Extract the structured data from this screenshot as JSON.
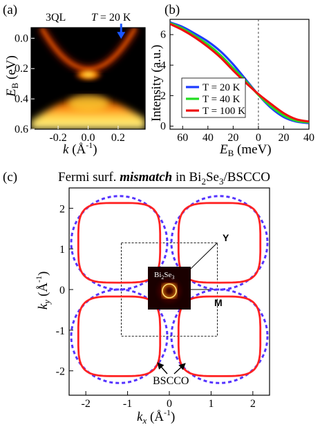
{
  "panels": {
    "a": {
      "letter": "(a)",
      "sample": "3QL",
      "temp_sym": "T",
      "temp_val": " = 20 K"
    },
    "b": {
      "letter": "(b)"
    },
    "c": {
      "letter": "(c)"
    }
  },
  "colors": {
    "blue": "#1f3cff",
    "green": "#22dd22",
    "red": "#ee1111",
    "bscco": "#5533ff",
    "bi2se3": "#ff2222",
    "arrow": "#1a56ff"
  },
  "chart_data": [
    {
      "id": "a",
      "type": "heatmap",
      "xlabel": {
        "k": "k",
        "open": " (Å",
        "exp": "-1",
        "close": ")"
      },
      "ylabel": {
        "E": "E",
        "sub": "B",
        "unit": " (eV)"
      },
      "xlim": [
        -0.38,
        0.38
      ],
      "ylim": [
        0.6,
        -0.07
      ],
      "xticks": [
        -0.2,
        0.0,
        0.2
      ],
      "xtick_labels": [
        "-0.2",
        "0.0",
        "0.2"
      ],
      "yticks": [
        0.0,
        0.2,
        0.4,
        0.6
      ],
      "ytick_labels": [
        "0.0",
        "0.2",
        "0.4",
        "0.6"
      ],
      "annotation": "arrow at k ≈ 0.22, E ≈ 0.0",
      "features": [
        {
          "name": "upper Dirac cone",
          "vertex_E": 0.23
        },
        {
          "name": "lower band",
          "top_E": 0.38
        }
      ]
    },
    {
      "id": "b",
      "type": "line",
      "xlabel": {
        "E": "E",
        "sub": "B",
        "unit": " (meV)"
      },
      "ylabel": "Intensity (a.u.)",
      "xlim": [
        70,
        -40
      ],
      "ylim": [
        -0.2,
        7.0
      ],
      "xticks": [
        60,
        40,
        20,
        0,
        -20,
        -40
      ],
      "xtick_labels": [
        "60",
        "40",
        "20",
        "0",
        "20",
        "40"
      ],
      "yticks": [
        0,
        2,
        4,
        6
      ],
      "ytick_labels": [
        "0",
        "2",
        "4",
        "6"
      ],
      "vline_x": 0,
      "legend": [
        "T = 20 K",
        "T = 40 K",
        "T = 100 K"
      ],
      "legend_position": "bottom-left",
      "x": [
        70,
        60,
        50,
        40,
        30,
        20,
        10,
        0,
        -10,
        -20,
        -30,
        -40
      ],
      "series": [
        {
          "name": "T = 20 K",
          "values": [
            6.8,
            6.5,
            6.05,
            5.55,
            4.9,
            4.05,
            3.05,
            2.05,
            1.2,
            0.6,
            0.3,
            0.2
          ]
        },
        {
          "name": "T = 40 K",
          "values": [
            6.75,
            6.4,
            5.9,
            5.35,
            4.65,
            3.8,
            2.95,
            2.05,
            1.3,
            0.7,
            0.35,
            0.25
          ]
        },
        {
          "name": "T = 100 K",
          "values": [
            6.7,
            6.3,
            5.8,
            5.2,
            4.5,
            3.65,
            2.85,
            2.1,
            1.45,
            0.85,
            0.45,
            0.3
          ]
        }
      ]
    },
    {
      "id": "c",
      "type": "line",
      "title": {
        "pre": "Fermi surf. ",
        "em": "mismatch",
        "mid": " in Bi",
        "s1": "2",
        "se": "Se",
        "s2": "3",
        "post": "/BSCCO"
      },
      "xlabel": {
        "k": "k",
        "sub": "x",
        "open": " (Å",
        "exp": "-1",
        "close": ")"
      },
      "ylabel": {
        "k": "k",
        "sub": "y",
        "open": " (Å",
        "exp": "-1",
        "close": ")"
      },
      "xlim": [
        -2.4,
        2.4
      ],
      "ylim": [
        -2.6,
        2.5
      ],
      "xticks": [
        -2,
        -1,
        0,
        1,
        2
      ],
      "xtick_labels": [
        "-2",
        "-1",
        "0",
        "1",
        "2"
      ],
      "yticks": [
        2,
        1,
        0,
        -1,
        -2
      ],
      "ytick_labels": [
        "2",
        "1",
        "0",
        "-1",
        "-2"
      ],
      "pockets": [
        {
          "center": [
            -1.2,
            1.15
          ]
        },
        {
          "center": [
            1.2,
            1.15
          ]
        },
        {
          "center": [
            -1.2,
            -1.15
          ]
        },
        {
          "center": [
            1.2,
            -1.15
          ]
        }
      ],
      "pocket_half_width": 0.98,
      "bscco_radius": 1.15,
      "bz_square_half": 1.15,
      "points": {
        "Y": "Y",
        "M": "M"
      },
      "inset_label": {
        "pre": "Bi",
        "s1": "2",
        "se": "Se",
        "s2": "3"
      },
      "bscco_label": "BSCCO"
    }
  ]
}
